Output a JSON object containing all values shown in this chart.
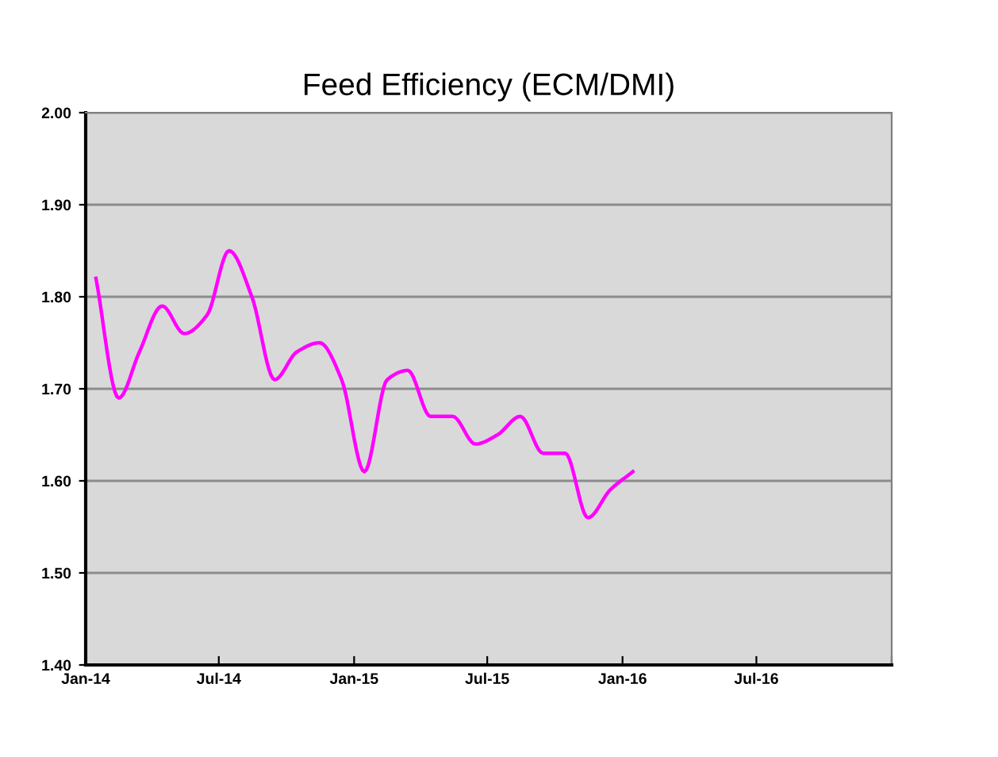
{
  "chart_data": {
    "type": "line",
    "title": "Feed Efficiency (ECM/DMI)",
    "x": [
      "2014-01-15",
      "2014-02-15",
      "2014-03-15",
      "2014-04-15",
      "2014-05-15",
      "2014-06-15",
      "2014-07-15",
      "2014-08-15",
      "2014-09-15",
      "2014-10-15",
      "2014-11-15",
      "2014-12-15",
      "2015-01-15",
      "2015-02-15",
      "2015-03-15",
      "2015-04-15",
      "2015-05-15",
      "2015-06-15",
      "2015-07-15",
      "2015-08-15",
      "2015-09-15",
      "2015-10-15",
      "2015-11-15",
      "2015-12-15",
      "2016-01-15"
    ],
    "series": [
      {
        "color": "#ff00ff",
        "values": [
          1.82,
          1.69,
          1.74,
          1.79,
          1.76,
          1.78,
          1.85,
          1.8,
          1.71,
          1.74,
          1.75,
          1.71,
          1.61,
          1.71,
          1.72,
          1.67,
          1.67,
          1.64,
          1.65,
          1.67,
          1.63,
          1.63,
          1.56,
          1.59,
          1.61
        ]
      }
    ],
    "xlim": [
      "2014-01",
      "2017-01"
    ],
    "xticks": [
      {
        "value": "2014-01",
        "label": "Jan-14"
      },
      {
        "value": "2014-07",
        "label": "Jul-14"
      },
      {
        "value": "2015-01",
        "label": "Jan-15"
      },
      {
        "value": "2015-07",
        "label": "Jul-15"
      },
      {
        "value": "2016-01",
        "label": "Jan-16"
      },
      {
        "value": "2016-07",
        "label": "Jul-16"
      },
      {
        "value": "2017-01",
        "label": null
      }
    ],
    "ylim": [
      1.4,
      2.0
    ],
    "yticks": [
      {
        "value": 1.4,
        "label": "1.40"
      },
      {
        "value": 1.5,
        "label": "1.50"
      },
      {
        "value": 1.6,
        "label": "1.60"
      },
      {
        "value": 1.7,
        "label": "1.70"
      },
      {
        "value": 1.8,
        "label": "1.80"
      },
      {
        "value": 1.9,
        "label": "1.90"
      },
      {
        "value": 2.0,
        "label": "2.00"
      }
    ],
    "grid": "y",
    "legend": false,
    "marker": "none",
    "line_style": "solid"
  }
}
